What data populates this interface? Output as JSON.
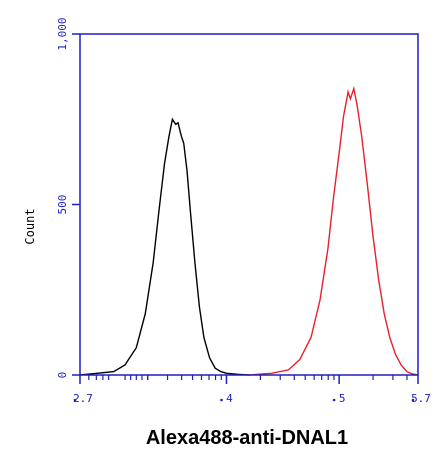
{
  "colors": {
    "axis": "#1f1fbf",
    "control": "#000000",
    "sample": "#e8202a"
  },
  "chart_data": {
    "type": "line",
    "title": "",
    "xlabel": "Alexa488-anti-DNAL1",
    "ylabel": "Count",
    "xscale": "log",
    "xlim": [
      2.7,
      5.7
    ],
    "ylim": [
      0,
      1000
    ],
    "ytick_labels": [
      {
        "value": 0,
        "label": "0"
      },
      {
        "value": 500,
        "label": "500"
      },
      {
        "value": 1000,
        "label": "1,000"
      }
    ],
    "xtick_labels": [
      {
        "value": 2.7,
        "label": "2.7"
      },
      {
        "value": 4,
        "label": "4"
      },
      {
        "value": 5,
        "label": "5"
      },
      {
        "value": 5.7,
        "label": "5.7"
      }
    ],
    "grid": false,
    "series": [
      {
        "color": "#000000",
        "x": [
          2.7,
          2.85,
          3.0,
          3.1,
          3.2,
          3.28,
          3.35,
          3.4,
          3.45,
          3.49,
          3.52,
          3.55,
          3.57,
          3.6,
          3.62,
          3.65,
          3.68,
          3.72,
          3.76,
          3.8,
          3.85,
          3.9,
          3.95,
          4.0,
          4.1,
          4.2
        ],
        "y": [
          0,
          5,
          10,
          30,
          80,
          180,
          330,
          480,
          620,
          700,
          750,
          735,
          740,
          700,
          680,
          600,
          480,
          330,
          200,
          110,
          50,
          20,
          10,
          5,
          2,
          0
        ]
      },
      {
        "color": "#e8202a",
        "x": [
          4.2,
          4.4,
          4.55,
          4.65,
          4.75,
          4.83,
          4.9,
          4.95,
          5.0,
          5.04,
          5.08,
          5.1,
          5.13,
          5.16,
          5.2,
          5.25,
          5.3,
          5.35,
          5.4,
          5.45,
          5.5,
          5.55,
          5.6,
          5.65,
          5.7
        ],
        "y": [
          0,
          5,
          15,
          45,
          110,
          220,
          370,
          520,
          650,
          760,
          830,
          810,
          840,
          790,
          700,
          560,
          410,
          280,
          180,
          110,
          60,
          30,
          10,
          3,
          0
        ]
      }
    ]
  }
}
